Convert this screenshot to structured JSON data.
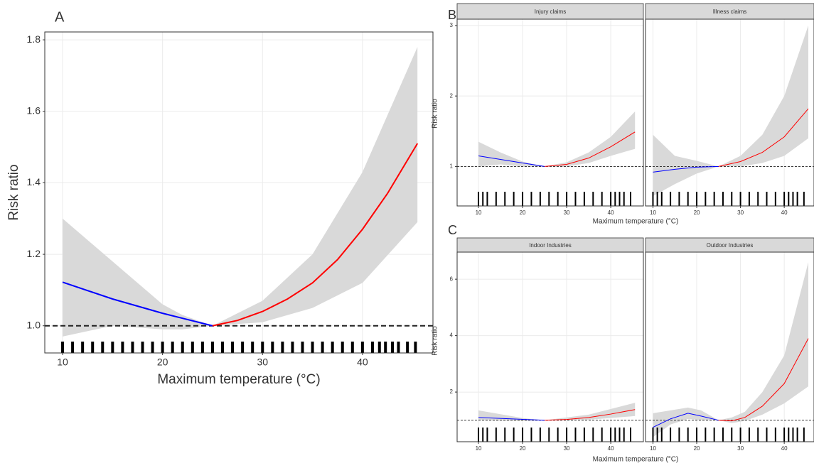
{
  "panels": [
    {
      "label": "A"
    },
    {
      "label": "B",
      "xlabel": "Maximum temperature (°C)",
      "ylabel": "Risk ratio"
    },
    {
      "label": "C",
      "xlabel": "Maximum temperature (°C)",
      "ylabel": "Risk ratio"
    }
  ],
  "chart_data": [
    {
      "type": "line",
      "xlabel": "Maximum temperature (°C)",
      "ylabel": "Risk ratio",
      "xlim": [
        8.22,
        47.05
      ],
      "ylim": [
        0.924,
        1.822
      ],
      "xticks": [
        10,
        20,
        30,
        40
      ],
      "yticks": [
        {
          "value": 1,
          "label": "1.0"
        },
        {
          "value": 1.2,
          "label": "1.2"
        },
        {
          "value": 1.4,
          "label": "1.4"
        },
        {
          "value": 1.6,
          "label": "1.6"
        },
        {
          "value": 1.8,
          "label": "1.8"
        }
      ],
      "grid": true,
      "hline": 1,
      "band": {
        "color": "#d9d9d9",
        "x": [
          10,
          15,
          20,
          22,
          25,
          30,
          35,
          40,
          45.5
        ],
        "lower": [
          0.97,
          1.0,
          0.99,
          0.99,
          1,
          1.01,
          1.05,
          1.12,
          1.29
        ],
        "upper": [
          1.3,
          1.18,
          1.06,
          1.03,
          1,
          1.07,
          1.2,
          1.43,
          1.78
        ]
      },
      "lines": [
        {
          "color": "#0000ff",
          "x": [
            10,
            15,
            20,
            25
          ],
          "values": [
            1.122,
            1.075,
            1.035,
            1.0
          ]
        },
        {
          "color": "#ff0000",
          "x": [
            25,
            27.5,
            30,
            32.5,
            35,
            37.5,
            40,
            42.5,
            45.5
          ],
          "values": [
            1.0,
            1.015,
            1.04,
            1.075,
            1.12,
            1.185,
            1.27,
            1.37,
            1.51
          ]
        }
      ],
      "rug": [
        10,
        11,
        12,
        13,
        14,
        15,
        16,
        17,
        18,
        19,
        20,
        21,
        22,
        23,
        24,
        25,
        26,
        27,
        28,
        29,
        30,
        31,
        32,
        33,
        34,
        35,
        36,
        37,
        38,
        39,
        40,
        41,
        41.7,
        42.3,
        43,
        43.6,
        44.5,
        45.3
      ]
    },
    {
      "type": "line",
      "title": "Injury claims",
      "xlim": [
        5.16,
        47.4
      ],
      "ylim": [
        0.44,
        3.09
      ],
      "xticks": [
        10,
        20,
        30,
        40
      ],
      "yticks": [
        1,
        2,
        3
      ],
      "grid": true,
      "hline": 1,
      "band": {
        "color": "#d9d9d9",
        "x": [
          10,
          15,
          20,
          25,
          30,
          35,
          40,
          45.5
        ],
        "lower": [
          1.0,
          1.03,
          1.0,
          1,
          1.0,
          1.05,
          1.15,
          1.25
        ],
        "upper": [
          1.35,
          1.2,
          1.07,
          1,
          1.06,
          1.2,
          1.42,
          1.78
        ]
      },
      "lines": [
        {
          "color": "#0000ff",
          "x": [
            10,
            15,
            20,
            25
          ],
          "values": [
            1.15,
            1.1,
            1.05,
            1.0
          ]
        },
        {
          "color": "#ff0000",
          "x": [
            25,
            30,
            35,
            40,
            45.5
          ],
          "values": [
            1.0,
            1.03,
            1.12,
            1.28,
            1.49
          ]
        }
      ],
      "rug": [
        10,
        11,
        12,
        14,
        16,
        18,
        20,
        22,
        24,
        26,
        28,
        30,
        32,
        34,
        36,
        38,
        40,
        41,
        42,
        43,
        44.5
      ]
    },
    {
      "type": "line",
      "title": "Illness claims",
      "xlim": [
        8.3,
        46.8
      ],
      "ylim": [
        0.44,
        3.09
      ],
      "xticks": [
        10,
        20,
        30,
        40
      ],
      "grid": true,
      "hline": 1,
      "band": {
        "color": "#d9d9d9",
        "x": [
          10,
          15,
          20,
          25,
          30,
          35,
          40,
          45.5
        ],
        "lower": [
          0.58,
          0.75,
          0.9,
          1,
          1.0,
          1.05,
          1.15,
          1.4
        ],
        "upper": [
          1.45,
          1.15,
          1.08,
          1,
          1.15,
          1.45,
          2.0,
          3.0
        ]
      },
      "lines": [
        {
          "color": "#0000ff",
          "x": [
            10,
            15,
            20,
            25
          ],
          "values": [
            0.92,
            0.96,
            0.99,
            1.0
          ]
        },
        {
          "color": "#ff0000",
          "x": [
            25,
            30,
            35,
            40,
            45.5
          ],
          "values": [
            1.0,
            1.07,
            1.2,
            1.42,
            1.82
          ]
        }
      ],
      "rug": [
        10,
        11,
        12,
        14,
        16,
        18,
        20,
        22,
        24,
        26,
        28,
        30,
        32,
        34,
        36,
        38,
        40,
        41,
        42,
        43,
        44.5
      ]
    },
    {
      "type": "line",
      "title": "Indoor Industries",
      "xlim": [
        5.16,
        47.4
      ],
      "ylim": [
        0.24,
        6.96
      ],
      "xticks": [
        10,
        20,
        30,
        40
      ],
      "yticks": [
        2,
        4,
        6
      ],
      "grid": true,
      "hline": 1,
      "band": {
        "color": "#d9d9d9",
        "x": [
          10,
          20,
          25,
          35,
          45.5
        ],
        "lower": [
          1.0,
          0.98,
          1,
          1.02,
          1.15
        ],
        "upper": [
          1.35,
          1.08,
          1,
          1.2,
          1.62
        ]
      },
      "lines": [
        {
          "color": "#0000ff",
          "x": [
            10,
            25
          ],
          "values": [
            1.1,
            1.0
          ]
        },
        {
          "color": "#ff0000",
          "x": [
            25,
            30,
            35,
            40,
            45.5
          ],
          "values": [
            1.0,
            1.03,
            1.1,
            1.22,
            1.38
          ]
        }
      ],
      "rug": [
        10,
        11,
        12,
        14,
        16,
        18,
        20,
        22,
        24,
        26,
        28,
        30,
        32,
        34,
        36,
        38,
        40,
        41,
        42,
        43,
        44.5
      ]
    },
    {
      "type": "line",
      "title": "Outdoor Industries",
      "xlim": [
        8.3,
        46.8
      ],
      "ylim": [
        0.24,
        6.96
      ],
      "xticks": [
        10,
        20,
        30,
        40
      ],
      "grid": true,
      "hline": 1,
      "band": {
        "color": "#d9d9d9",
        "x": [
          10,
          14,
          18,
          21,
          25,
          28,
          31,
          35,
          40,
          45.5
        ],
        "lower": [
          0.4,
          0.85,
          1.05,
          1.0,
          1,
          0.9,
          0.98,
          1.2,
          1.6,
          2.2
        ],
        "upper": [
          1.25,
          1.35,
          1.45,
          1.35,
          1,
          1.1,
          1.3,
          2.0,
          3.3,
          6.6
        ]
      },
      "lines": [
        {
          "color": "#0000ff",
          "x": [
            10,
            14,
            18,
            21,
            25
          ],
          "values": [
            0.75,
            1.05,
            1.25,
            1.15,
            1.0
          ]
        },
        {
          "color": "#ff0000",
          "x": [
            25,
            28,
            31,
            35,
            40,
            45.5
          ],
          "values": [
            1.0,
            0.98,
            1.1,
            1.5,
            2.3,
            3.9
          ]
        }
      ],
      "rug": [
        10,
        11,
        12,
        14,
        16,
        18,
        20,
        22,
        24,
        26,
        28,
        30,
        32,
        34,
        36,
        38,
        40,
        41,
        42,
        43,
        44.5
      ]
    }
  ]
}
